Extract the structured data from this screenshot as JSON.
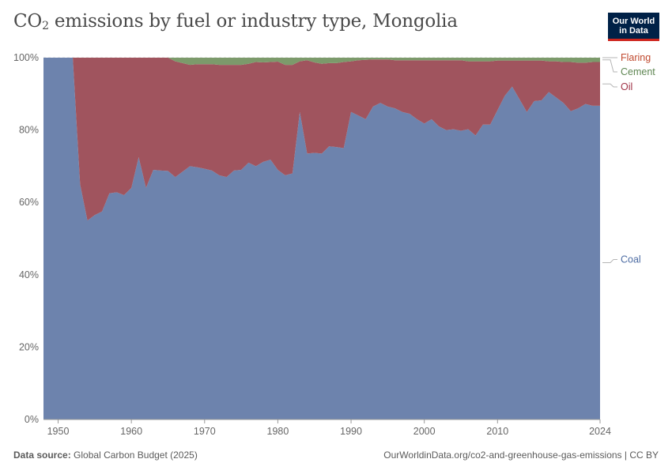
{
  "header": {
    "title_main": "CO",
    "title_sub": "2",
    "title_rest": " emissions by fuel or industry type, Mongolia",
    "logo_line1": "Our World",
    "logo_line2": "in Data"
  },
  "footer": {
    "source_label": "Data source:",
    "source_value": "Global Carbon Budget (2025)",
    "url": "OurWorldinData.org/co2-and-greenhouse-gas-emissions | CC BY"
  },
  "colors": {
    "coal": "#6d83ad",
    "oil": "#a0545e",
    "cement": "#7c9a6b",
    "flaring": "#e8e2d8",
    "coal_label": "#4d6ca3",
    "oil_label": "#a03347",
    "cement_label": "#5e8652",
    "flaring_label": "#c0492e",
    "grid": "#dddddd",
    "axis_text": "#666666"
  },
  "chart_data": {
    "type": "area",
    "stacked": true,
    "normalized": true,
    "title": "CO₂ emissions by fuel or industry type, Mongolia",
    "xlabel": "",
    "ylabel": "",
    "xlim": [
      1948,
      2024
    ],
    "ylim": [
      0,
      100
    ],
    "x_ticks": [
      "1950",
      "1960",
      "1970",
      "1980",
      "1990",
      "2000",
      "2010",
      "2024"
    ],
    "x_tick_values": [
      1950,
      1960,
      1970,
      1980,
      1990,
      2000,
      2010,
      2024
    ],
    "y_ticks": [
      "0%",
      "20%",
      "40%",
      "60%",
      "80%",
      "100%"
    ],
    "y_tick_values": [
      0,
      20,
      40,
      60,
      80,
      100
    ],
    "legend_position": "right",
    "x": [
      1948,
      1949,
      1950,
      1951,
      1952,
      1953,
      1954,
      1955,
      1956,
      1957,
      1958,
      1959,
      1960,
      1961,
      1962,
      1963,
      1964,
      1965,
      1966,
      1967,
      1968,
      1969,
      1970,
      1971,
      1972,
      1973,
      1974,
      1975,
      1976,
      1977,
      1978,
      1979,
      1980,
      1981,
      1982,
      1983,
      1984,
      1985,
      1986,
      1987,
      1988,
      1989,
      1990,
      1991,
      1992,
      1993,
      1994,
      1995,
      1996,
      1997,
      1998,
      1999,
      2000,
      2001,
      2002,
      2003,
      2004,
      2005,
      2006,
      2007,
      2008,
      2009,
      2010,
      2011,
      2012,
      2013,
      2014,
      2015,
      2016,
      2017,
      2018,
      2019,
      2020,
      2021,
      2022,
      2023,
      2024
    ],
    "series": [
      {
        "name": "Coal",
        "values": [
          100,
          100,
          100,
          100,
          100,
          65,
          55,
          56.5,
          57.5,
          62.5,
          62.8,
          62,
          64,
          72.5,
          64,
          69,
          68.8,
          68.7,
          67,
          68.5,
          70,
          69.7,
          69.3,
          68.8,
          67.5,
          67,
          68.8,
          69,
          71,
          70,
          71.2,
          71.8,
          69,
          67.5,
          68,
          85,
          73.5,
          73.7,
          73.5,
          75.5,
          75.3,
          75,
          85,
          84,
          83,
          86.5,
          87.5,
          86.5,
          86,
          85,
          84.5,
          83,
          81.8,
          83,
          81,
          80,
          80.2,
          79.8,
          80.2,
          78.5,
          81.5,
          81.5,
          85.5,
          89.5,
          92,
          88.5,
          85,
          88,
          88.2,
          90.5,
          89,
          87.5,
          85.2,
          86,
          87.2,
          86.7,
          86.7
        ]
      },
      {
        "name": "Oil",
        "values": [
          0,
          0,
          0,
          0,
          0,
          35,
          45,
          43.5,
          42.5,
          37.5,
          37.2,
          38,
          36,
          27.5,
          36,
          31,
          31.2,
          31.3,
          32,
          30,
          28,
          28.5,
          28.9,
          29.4,
          30.5,
          31,
          29.2,
          29,
          27.3,
          28.8,
          27.5,
          27,
          29.9,
          30.5,
          30,
          14,
          25.8,
          25,
          24.8,
          23,
          23.2,
          23.8,
          14,
          15.3,
          16.4,
          13,
          12,
          13,
          13.3,
          14.3,
          14.8,
          16.3,
          17.5,
          16.3,
          18.3,
          19.3,
          19.1,
          19.5,
          18.8,
          20.5,
          17.5,
          17.5,
          13.7,
          9.7,
          7.2,
          10.7,
          14.2,
          11.2,
          11,
          8.5,
          10,
          11.3,
          13.6,
          12.6,
          11.4,
          12.1,
          12.1
        ]
      },
      {
        "name": "Cement",
        "values": [
          0,
          0,
          0,
          0,
          0,
          0,
          0,
          0,
          0,
          0,
          0,
          0,
          0,
          0,
          0,
          0,
          0,
          0,
          1,
          1.5,
          2,
          1.8,
          1.8,
          1.8,
          2,
          2,
          2,
          2,
          1.7,
          1.2,
          1.3,
          1.2,
          1.1,
          2,
          2,
          1,
          0.7,
          1.3,
          1.7,
          1.5,
          1.5,
          1.2,
          1,
          0.7,
          0.6,
          0.5,
          0.5,
          0.5,
          0.7,
          0.7,
          0.7,
          0.7,
          0.7,
          0.7,
          0.7,
          0.7,
          0.7,
          0.7,
          1,
          1,
          1,
          1,
          0.8,
          0.8,
          0.8,
          0.8,
          0.8,
          0.8,
          0.8,
          1,
          1,
          1.2,
          1.2,
          1.4,
          1.4,
          1.2,
          1.2
        ]
      },
      {
        "name": "Flaring",
        "values": [
          0,
          0,
          0,
          0,
          0,
          0,
          0,
          0,
          0,
          0,
          0,
          0,
          0,
          0,
          0,
          0,
          0,
          0,
          0,
          0,
          0,
          0,
          0,
          0,
          0,
          0,
          0,
          0,
          0,
          0,
          0,
          0,
          0,
          0,
          0,
          0,
          0,
          0,
          0,
          0,
          0,
          0,
          0,
          0,
          0,
          0,
          0,
          0,
          0,
          0,
          0,
          0,
          0,
          0,
          0,
          0,
          0,
          0,
          0,
          0,
          0,
          0,
          0,
          0,
          0,
          0,
          0,
          0,
          0,
          0,
          0,
          0,
          0,
          0,
          0,
          0,
          0
        ]
      }
    ],
    "legend_labels": [
      "Flaring",
      "Cement",
      "Oil",
      "Coal"
    ]
  }
}
